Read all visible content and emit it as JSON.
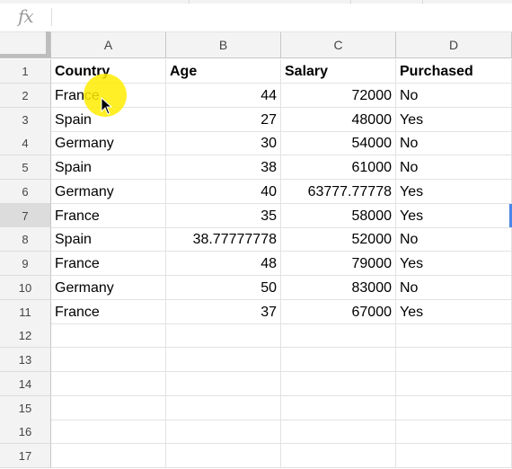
{
  "formula_bar": {
    "fx_label": "fx",
    "value": ""
  },
  "columns": [
    "A",
    "B",
    "C",
    "D"
  ],
  "row_numbers": [
    "1",
    "2",
    "3",
    "4",
    "5",
    "6",
    "7",
    "8",
    "9",
    "10",
    "11",
    "12",
    "13",
    "14",
    "15",
    "16",
    "17"
  ],
  "active_row": "7",
  "rows": [
    [
      "Country",
      "Age",
      "Salary",
      "Purchased"
    ],
    [
      "France",
      "44",
      "72000",
      "No"
    ],
    [
      "Spain",
      "27",
      "48000",
      "Yes"
    ],
    [
      "Germany",
      "30",
      "54000",
      "No"
    ],
    [
      "Spain",
      "38",
      "61000",
      "No"
    ],
    [
      "Germany",
      "40",
      "63777.77778",
      "Yes"
    ],
    [
      "France",
      "35",
      "58000",
      "Yes"
    ],
    [
      "Spain",
      "38.77777778",
      "52000",
      "No"
    ],
    [
      "France",
      "48",
      "79000",
      "Yes"
    ],
    [
      "Germany",
      "50",
      "83000",
      "No"
    ],
    [
      "France",
      "37",
      "67000",
      "Yes"
    ]
  ],
  "colors": {
    "highlight": "#ffec00",
    "selection": "#4a86e8",
    "header_bg": "#f3f3f3"
  },
  "icons": {
    "formula": "fx-icon",
    "pointer": "mouse-pointer-icon"
  }
}
